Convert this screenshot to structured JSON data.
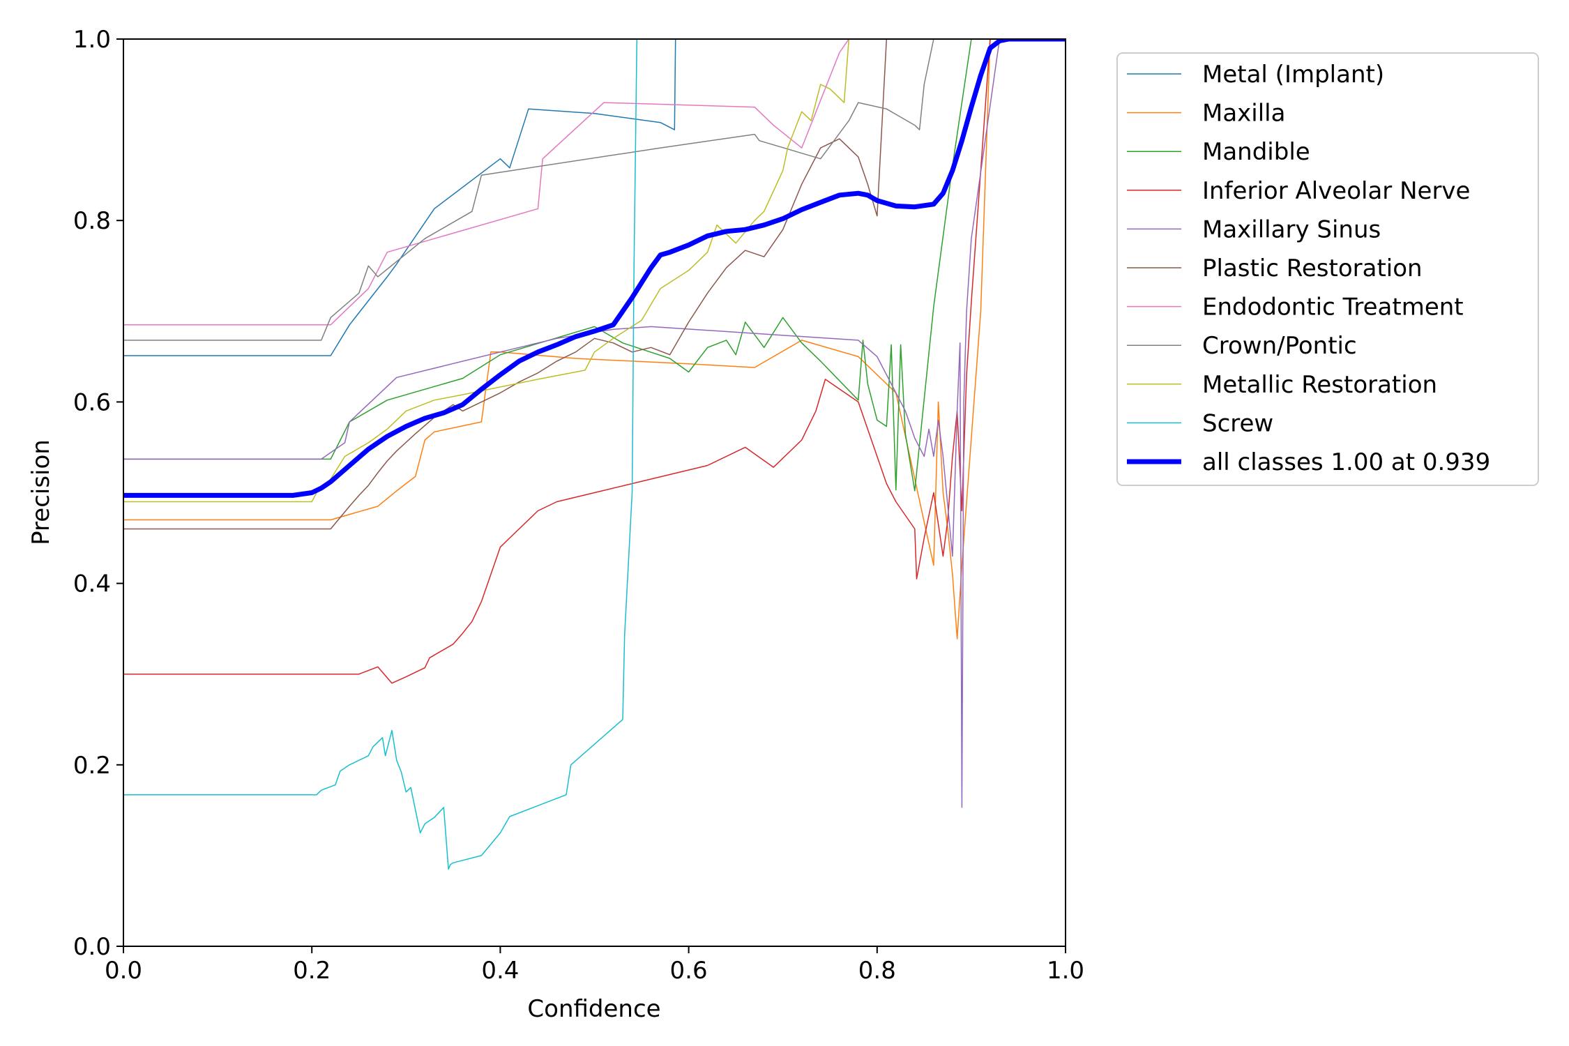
{
  "chart_data": {
    "type": "line",
    "title": "",
    "xlabel": "Confidence",
    "ylabel": "Precision",
    "xlim": [
      0,
      1
    ],
    "ylim": [
      0,
      1
    ],
    "xticks": [
      "0.0",
      "0.2",
      "0.4",
      "0.6",
      "0.8",
      "1.0"
    ],
    "yticks": [
      "0.0",
      "0.2",
      "0.4",
      "0.6",
      "0.8",
      "1.0"
    ],
    "grid": false,
    "legend_position": "outside-upper-right",
    "series": [
      {
        "name": "Metal (Implant)",
        "color": "#1f77b4",
        "width": 1.5,
        "x": [
          0,
          0.22,
          0.24,
          0.28,
          0.29,
          0.33,
          0.4,
          0.41,
          0.43,
          0.5,
          0.57,
          0.585,
          0.586,
          0.59,
          1.0
        ],
        "y": [
          0.651,
          0.651,
          0.685,
          0.738,
          0.752,
          0.813,
          0.868,
          0.858,
          0.923,
          0.918,
          0.908,
          0.9,
          1.0,
          1.0,
          1.0
        ]
      },
      {
        "name": "Maxilla",
        "color": "#ff7f0e",
        "width": 1.5,
        "x": [
          0,
          0.22,
          0.27,
          0.29,
          0.31,
          0.32,
          0.33,
          0.38,
          0.39,
          0.4,
          0.48,
          0.6,
          0.67,
          0.72,
          0.78,
          0.82,
          0.86,
          0.865,
          0.87,
          0.875,
          0.88,
          0.885,
          0.89,
          0.91,
          0.92,
          1.0
        ],
        "y": [
          0.47,
          0.47,
          0.485,
          0.502,
          0.518,
          0.558,
          0.567,
          0.578,
          0.655,
          0.655,
          0.648,
          0.642,
          0.638,
          0.668,
          0.65,
          0.61,
          0.42,
          0.6,
          0.5,
          0.46,
          0.41,
          0.339,
          0.42,
          0.7,
          1.0,
          1.0
        ]
      },
      {
        "name": "Mandible",
        "color": "#2ca02c",
        "width": 1.5,
        "x": [
          0,
          0.22,
          0.24,
          0.28,
          0.36,
          0.4,
          0.5,
          0.53,
          0.58,
          0.6,
          0.62,
          0.64,
          0.65,
          0.66,
          0.68,
          0.7,
          0.72,
          0.74,
          0.78,
          0.785,
          0.79,
          0.8,
          0.81,
          0.815,
          0.82,
          0.825,
          0.83,
          0.84,
          0.86,
          0.88,
          0.9,
          1.0
        ],
        "y": [
          0.537,
          0.537,
          0.578,
          0.602,
          0.626,
          0.652,
          0.683,
          0.665,
          0.648,
          0.633,
          0.66,
          0.668,
          0.652,
          0.688,
          0.66,
          0.693,
          0.665,
          0.645,
          0.602,
          0.668,
          0.62,
          0.58,
          0.573,
          0.663,
          0.503,
          0.663,
          0.565,
          0.502,
          0.705,
          0.86,
          1.0,
          1.0
        ]
      },
      {
        "name": "Inferior Alveolar Nerve",
        "color": "#d62728",
        "width": 1.5,
        "x": [
          0,
          0.25,
          0.27,
          0.285,
          0.3,
          0.32,
          0.325,
          0.35,
          0.36,
          0.37,
          0.38,
          0.39,
          0.4,
          0.41,
          0.42,
          0.44,
          0.46,
          0.5,
          0.54,
          0.58,
          0.62,
          0.66,
          0.69,
          0.72,
          0.735,
          0.745,
          0.78,
          0.79,
          0.8,
          0.81,
          0.82,
          0.84,
          0.842,
          0.85,
          0.86,
          0.87,
          0.875,
          0.88,
          0.885,
          0.89,
          0.895,
          0.9,
          0.92,
          1.0
        ],
        "y": [
          0.3,
          0.3,
          0.308,
          0.29,
          0.297,
          0.307,
          0.318,
          0.333,
          0.345,
          0.358,
          0.38,
          0.41,
          0.44,
          0.45,
          0.46,
          0.48,
          0.49,
          0.5,
          0.51,
          0.52,
          0.53,
          0.55,
          0.528,
          0.558,
          0.59,
          0.625,
          0.6,
          0.57,
          0.54,
          0.51,
          0.49,
          0.46,
          0.405,
          0.45,
          0.5,
          0.43,
          0.47,
          0.54,
          0.59,
          0.48,
          0.63,
          0.71,
          1.0,
          1.0
        ]
      },
      {
        "name": "Maxillary Sinus",
        "color": "#9467bd",
        "width": 1.5,
        "x": [
          0,
          0.21,
          0.235,
          0.24,
          0.29,
          0.4,
          0.46,
          0.52,
          0.56,
          0.78,
          0.8,
          0.83,
          0.84,
          0.85,
          0.855,
          0.86,
          0.865,
          0.87,
          0.88,
          0.885,
          0.888,
          0.89,
          0.892,
          0.895,
          0.9,
          0.93,
          1.0
        ],
        "y": [
          0.537,
          0.537,
          0.555,
          0.578,
          0.627,
          0.655,
          0.67,
          0.68,
          0.683,
          0.668,
          0.65,
          0.59,
          0.56,
          0.54,
          0.57,
          0.54,
          0.58,
          0.54,
          0.43,
          0.59,
          0.665,
          0.153,
          0.6,
          0.7,
          0.78,
          1.0,
          1.0
        ]
      },
      {
        "name": "Plastic Restoration",
        "color": "#8c564b",
        "width": 1.5,
        "x": [
          0,
          0.22,
          0.24,
          0.25,
          0.26,
          0.27,
          0.28,
          0.29,
          0.31,
          0.33,
          0.35,
          0.36,
          0.38,
          0.4,
          0.42,
          0.44,
          0.46,
          0.48,
          0.5,
          0.52,
          0.54,
          0.56,
          0.58,
          0.6,
          0.62,
          0.64,
          0.66,
          0.68,
          0.7,
          0.72,
          0.74,
          0.76,
          0.78,
          0.79,
          0.8,
          0.81,
          0.82,
          0.84,
          0.86,
          1.0
        ],
        "y": [
          0.46,
          0.46,
          0.485,
          0.497,
          0.508,
          0.522,
          0.535,
          0.546,
          0.565,
          0.583,
          0.597,
          0.59,
          0.6,
          0.61,
          0.622,
          0.632,
          0.645,
          0.655,
          0.67,
          0.665,
          0.655,
          0.66,
          0.652,
          0.688,
          0.72,
          0.748,
          0.767,
          0.76,
          0.79,
          0.84,
          0.88,
          0.89,
          0.87,
          0.84,
          0.805,
          1.0,
          1.0,
          1.0,
          1.0,
          1.0
        ]
      },
      {
        "name": "Endodontic Treatment",
        "color": "#e377c2",
        "width": 1.5,
        "x": [
          0,
          0.22,
          0.26,
          0.28,
          0.44,
          0.445,
          0.51,
          0.67,
          0.69,
          0.72,
          0.76,
          0.77,
          1.0
        ],
        "y": [
          0.685,
          0.685,
          0.725,
          0.765,
          0.813,
          0.868,
          0.93,
          0.925,
          0.905,
          0.88,
          0.985,
          1.0,
          1.0
        ]
      },
      {
        "name": "Crown/Pontic",
        "color": "#7f7f7f",
        "width": 1.5,
        "x": [
          0,
          0.21,
          0.22,
          0.25,
          0.26,
          0.27,
          0.32,
          0.37,
          0.38,
          0.57,
          0.67,
          0.675,
          0.74,
          0.77,
          0.78,
          0.81,
          0.82,
          0.84,
          0.845,
          0.85,
          0.86,
          1.0
        ],
        "y": [
          0.668,
          0.668,
          0.693,
          0.72,
          0.75,
          0.738,
          0.78,
          0.81,
          0.85,
          0.88,
          0.895,
          0.888,
          0.868,
          0.91,
          0.93,
          0.923,
          0.917,
          0.905,
          0.9,
          0.95,
          1.0,
          1.0
        ]
      },
      {
        "name": "Metallic Restoration",
        "color": "#bcbd22",
        "width": 1.5,
        "x": [
          0,
          0.2,
          0.205,
          0.22,
          0.235,
          0.26,
          0.28,
          0.3,
          0.33,
          0.36,
          0.44,
          0.49,
          0.5,
          0.52,
          0.55,
          0.57,
          0.6,
          0.62,
          0.63,
          0.65,
          0.67,
          0.68,
          0.7,
          0.705,
          0.72,
          0.73,
          0.74,
          0.75,
          0.76,
          0.765,
          0.77,
          0.78,
          1.0
        ],
        "y": [
          0.49,
          0.49,
          0.5,
          0.515,
          0.54,
          0.555,
          0.57,
          0.59,
          0.602,
          0.608,
          0.625,
          0.635,
          0.655,
          0.67,
          0.69,
          0.725,
          0.745,
          0.765,
          0.795,
          0.775,
          0.8,
          0.81,
          0.855,
          0.88,
          0.92,
          0.91,
          0.95,
          0.945,
          0.935,
          0.93,
          1.0,
          1.0,
          1.0
        ]
      },
      {
        "name": "Screw",
        "color": "#17becf",
        "width": 1.5,
        "x": [
          0,
          0.205,
          0.21,
          0.225,
          0.23,
          0.24,
          0.26,
          0.265,
          0.275,
          0.278,
          0.285,
          0.29,
          0.295,
          0.3,
          0.305,
          0.31,
          0.315,
          0.32,
          0.33,
          0.34,
          0.345,
          0.347,
          0.35,
          0.38,
          0.4,
          0.41,
          0.47,
          0.475,
          0.53,
          0.532,
          0.54,
          0.542,
          0.545,
          0.548,
          1.0
        ],
        "y": [
          0.167,
          0.167,
          0.172,
          0.178,
          0.193,
          0.2,
          0.21,
          0.22,
          0.23,
          0.21,
          0.238,
          0.205,
          0.192,
          0.17,
          0.175,
          0.15,
          0.125,
          0.135,
          0.142,
          0.153,
          0.085,
          0.09,
          0.092,
          0.1,
          0.125,
          0.143,
          0.167,
          0.2,
          0.25,
          0.343,
          0.5,
          0.75,
          1.0,
          1.0,
          1.0
        ]
      },
      {
        "name": "all classes 1.00 at 0.939",
        "color": "#0000ff",
        "width": 7,
        "x": [
          0,
          0.18,
          0.2,
          0.21,
          0.22,
          0.24,
          0.26,
          0.28,
          0.3,
          0.32,
          0.34,
          0.36,
          0.38,
          0.4,
          0.42,
          0.44,
          0.46,
          0.48,
          0.5,
          0.52,
          0.54,
          0.56,
          0.57,
          0.58,
          0.6,
          0.62,
          0.64,
          0.66,
          0.68,
          0.7,
          0.72,
          0.74,
          0.76,
          0.78,
          0.79,
          0.8,
          0.82,
          0.84,
          0.86,
          0.87,
          0.88,
          0.89,
          0.9,
          0.91,
          0.92,
          0.93,
          0.94,
          1.0
        ],
        "y": [
          0.497,
          0.497,
          0.5,
          0.505,
          0.512,
          0.53,
          0.548,
          0.562,
          0.573,
          0.582,
          0.588,
          0.597,
          0.614,
          0.63,
          0.645,
          0.655,
          0.663,
          0.672,
          0.678,
          0.685,
          0.715,
          0.748,
          0.762,
          0.765,
          0.773,
          0.783,
          0.788,
          0.79,
          0.795,
          0.802,
          0.812,
          0.82,
          0.828,
          0.83,
          0.828,
          0.822,
          0.816,
          0.815,
          0.818,
          0.83,
          0.855,
          0.888,
          0.925,
          0.96,
          0.99,
          0.998,
          1.0,
          1.0
        ]
      }
    ]
  }
}
